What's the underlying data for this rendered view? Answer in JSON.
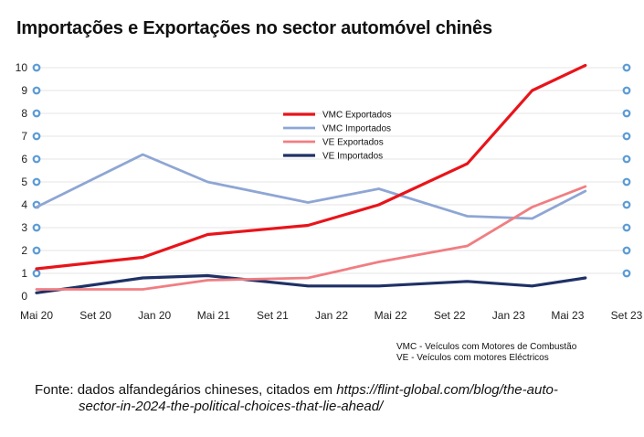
{
  "chart_data": {
    "type": "line",
    "title": "Importações e Exportações no sector automóvel chinês",
    "x": [
      "Mai 20",
      "Set 20",
      "Jan 20",
      "Mai 21",
      "Set 21",
      "Jan 22",
      "Mai 22",
      "Set 22",
      "Jan 23",
      "Mai 23",
      "Set 23"
    ],
    "y_ticks": [
      "0",
      "1",
      "2",
      "3",
      "4",
      "5",
      "6",
      "7",
      "8",
      "9",
      "10"
    ],
    "ylim": [
      0,
      10
    ],
    "grid": true,
    "legend_position": "top-center",
    "series": [
      {
        "name": "VMC Exportados",
        "color": "#e8141a",
        "width": 3.2,
        "points": [
          [
            0,
            1.2
          ],
          [
            1.8,
            1.7
          ],
          [
            2.9,
            2.7
          ],
          [
            4.6,
            3.1
          ],
          [
            5.8,
            4.0
          ],
          [
            7.3,
            5.8
          ],
          [
            8.4,
            9.0
          ],
          [
            9.3,
            10.1
          ]
        ]
      },
      {
        "name": "VMC Importados",
        "color": "#8ea6d4",
        "width": 2.8,
        "points": [
          [
            0,
            3.9
          ],
          [
            1.8,
            6.2
          ],
          [
            2.9,
            5.0
          ],
          [
            4.6,
            4.1
          ],
          [
            5.8,
            4.7
          ],
          [
            7.3,
            3.5
          ],
          [
            8.4,
            3.4
          ],
          [
            9.3,
            4.6
          ]
        ]
      },
      {
        "name": "VE Exportados",
        "color": "#f07e82",
        "width": 2.8,
        "points": [
          [
            0,
            0.3
          ],
          [
            1.8,
            0.3
          ],
          [
            2.9,
            0.7
          ],
          [
            4.6,
            0.8
          ],
          [
            5.8,
            1.5
          ],
          [
            7.3,
            2.2
          ],
          [
            8.4,
            3.9
          ],
          [
            9.3,
            4.8
          ]
        ]
      },
      {
        "name": "VE Importados",
        "color": "#1f3166",
        "width": 3.2,
        "points": [
          [
            0,
            0.15
          ],
          [
            1.8,
            0.8
          ],
          [
            2.9,
            0.9
          ],
          [
            4.6,
            0.45
          ],
          [
            5.8,
            0.45
          ],
          [
            7.3,
            0.65
          ],
          [
            8.4,
            0.45
          ],
          [
            9.3,
            0.8
          ]
        ]
      }
    ],
    "notes": [
      "VMC - Veículos com Motores de Combustão",
      "VE - Veículos com motores Eléctricos"
    ],
    "source": {
      "line1_prefix": "Fonte: dados alfandegários chineses, citados em ",
      "line1_url": "https://flint-global.com/blog/the-auto-",
      "line2_url": "sector-in-2024-the-political-choices-that-lie-ahead/"
    },
    "marker_color": "#5b9bd5"
  }
}
